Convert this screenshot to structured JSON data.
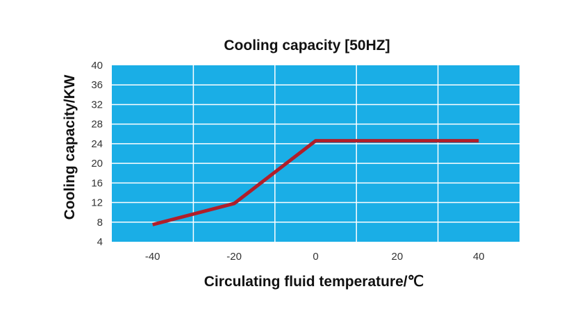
{
  "chart_data": {
    "type": "line",
    "title": "Cooling capacity [50HZ]",
    "xlabel": "Circulating fluid temperature/℃",
    "ylabel": "Cooling capacity/KW",
    "xlim": [
      -50,
      50
    ],
    "ylim": [
      4,
      40
    ],
    "x_ticks": [
      -40,
      -20,
      0,
      20,
      40
    ],
    "y_ticks": [
      40,
      36,
      32,
      28,
      24,
      20,
      16,
      12,
      8,
      4
    ],
    "grid": true,
    "plot_background": "#1aaee6",
    "grid_color": "#ffffff",
    "series": [
      {
        "color": "#b01e2a",
        "x": [
          -40,
          -20,
          0,
          40
        ],
        "y": [
          7.5,
          11.8,
          24.6,
          24.6
        ]
      }
    ]
  }
}
